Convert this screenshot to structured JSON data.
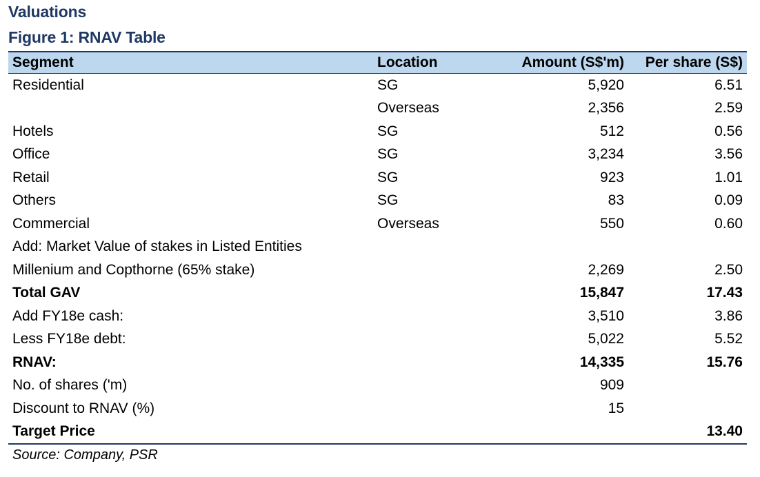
{
  "section_title": "Valuations",
  "figure_title": "Figure 1: RNAV Table",
  "columns": {
    "segment": "Segment",
    "location": "Location",
    "amount": "Amount (S$'m)",
    "per_share": "Per share (S$)"
  },
  "rows": [
    {
      "segment": "Residential",
      "location": "SG",
      "amount": "5,920",
      "per_share": "6.51"
    },
    {
      "segment": "",
      "location": "Overseas",
      "amount": "2,356",
      "per_share": "2.59"
    },
    {
      "segment": "Hotels",
      "location": "SG",
      "amount": "512",
      "per_share": "0.56"
    },
    {
      "segment": "Office",
      "location": "SG",
      "amount": "3,234",
      "per_share": "3.56"
    },
    {
      "segment": "Retail",
      "location": "SG",
      "amount": "923",
      "per_share": "1.01"
    },
    {
      "segment": "Others",
      "location": "SG",
      "amount": "83",
      "per_share": "0.09"
    },
    {
      "segment": "Commercial",
      "location": "Overseas",
      "amount": "550",
      "per_share": "0.60"
    },
    {
      "segment": "Add: Market Value of stakes in Listed Entities",
      "location": "",
      "amount": "",
      "per_share": ""
    },
    {
      "segment": "Millenium and Copthorne (65% stake)",
      "location": "",
      "amount": "2,269",
      "per_share": "2.50"
    },
    {
      "segment": "Total GAV",
      "location": "",
      "amount": "15,847",
      "per_share": "17.43",
      "bold": true
    },
    {
      "segment": "Add FY18e cash:",
      "location": "",
      "amount": "3,510",
      "per_share": "3.86"
    },
    {
      "segment": "Less FY18e debt:",
      "location": "",
      "amount": "5,022",
      "per_share": "5.52"
    },
    {
      "segment": "RNAV:",
      "location": "",
      "amount": "14,335",
      "per_share": "15.76",
      "bold": true
    },
    {
      "segment": "No. of shares ('m)",
      "location": "",
      "amount": "909",
      "per_share": ""
    },
    {
      "segment": "Discount to RNAV (%)",
      "location": "",
      "amount": "15",
      "per_share": ""
    },
    {
      "segment": "Target Price",
      "location": "",
      "amount": "",
      "per_share": "13.40",
      "bold": true
    }
  ],
  "source": "Source: Company, PSR",
  "colors": {
    "title": "#1f3864",
    "header_fill": "#bdd7ee",
    "rule": "#1f3864"
  }
}
